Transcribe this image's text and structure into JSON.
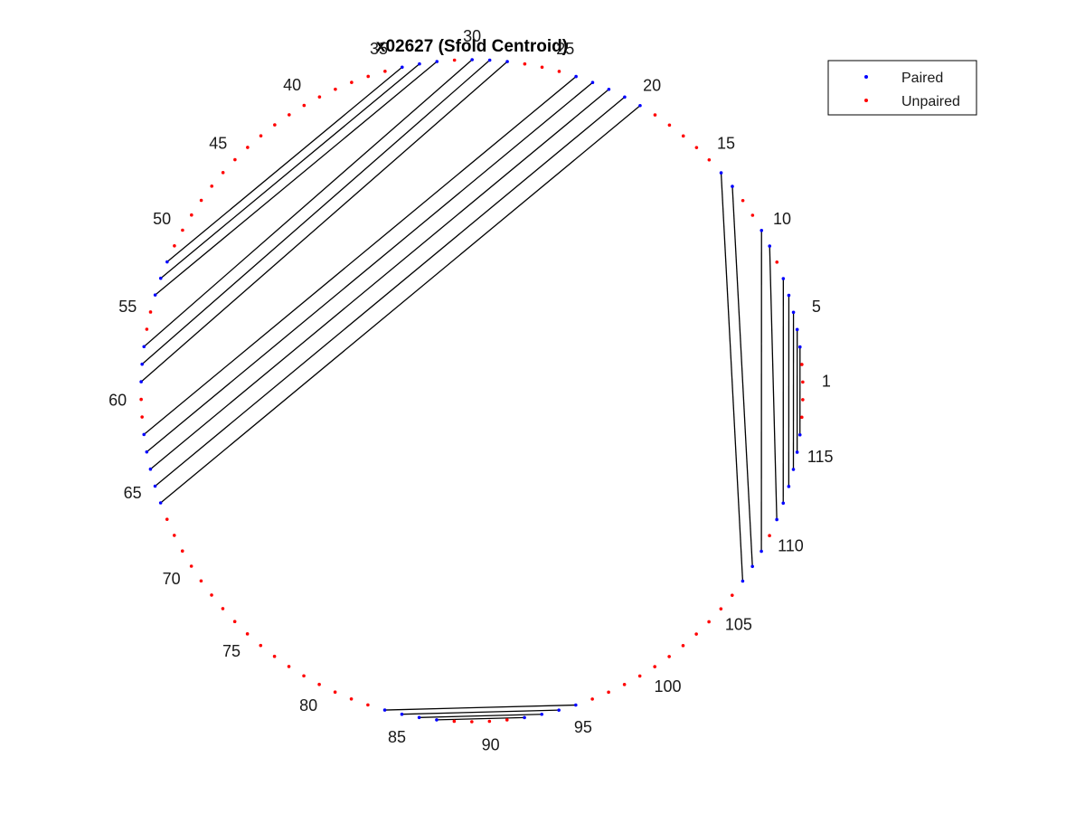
{
  "title": "x02627 (Sfold Centroid)",
  "colors": {
    "paired": "#0000ff",
    "unpaired": "#ff0000",
    "pair_line": "#000000"
  },
  "legend": {
    "position": "top-right",
    "entries": [
      {
        "label": "Paired",
        "color": "#0000ff"
      },
      {
        "label": "Unpaired",
        "color": "#ff0000"
      }
    ]
  },
  "chart_data": {
    "type": "arc-diagram",
    "sequence_length": 118,
    "tick_labels": [
      "1",
      "5",
      "10",
      "15",
      "20",
      "25",
      "30",
      "35",
      "40",
      "45",
      "50",
      "55",
      "60",
      "65",
      "70",
      "75",
      "80",
      "85",
      "90",
      "95",
      "100",
      "105",
      "110",
      "115"
    ],
    "pairs": [
      [
        3,
        116
      ],
      [
        4,
        115
      ],
      [
        5,
        114
      ],
      [
        6,
        113
      ],
      [
        7,
        112
      ],
      [
        9,
        111
      ],
      [
        10,
        109
      ],
      [
        13,
        108
      ],
      [
        14,
        107
      ],
      [
        20,
        66
      ],
      [
        21,
        65
      ],
      [
        22,
        64
      ],
      [
        23,
        63
      ],
      [
        24,
        62
      ],
      [
        28,
        59
      ],
      [
        29,
        58
      ],
      [
        30,
        57
      ],
      [
        32,
        54
      ],
      [
        33,
        53
      ],
      [
        34,
        52
      ],
      [
        84,
        95
      ],
      [
        85,
        94
      ],
      [
        86,
        93
      ],
      [
        87,
        92
      ]
    ]
  }
}
